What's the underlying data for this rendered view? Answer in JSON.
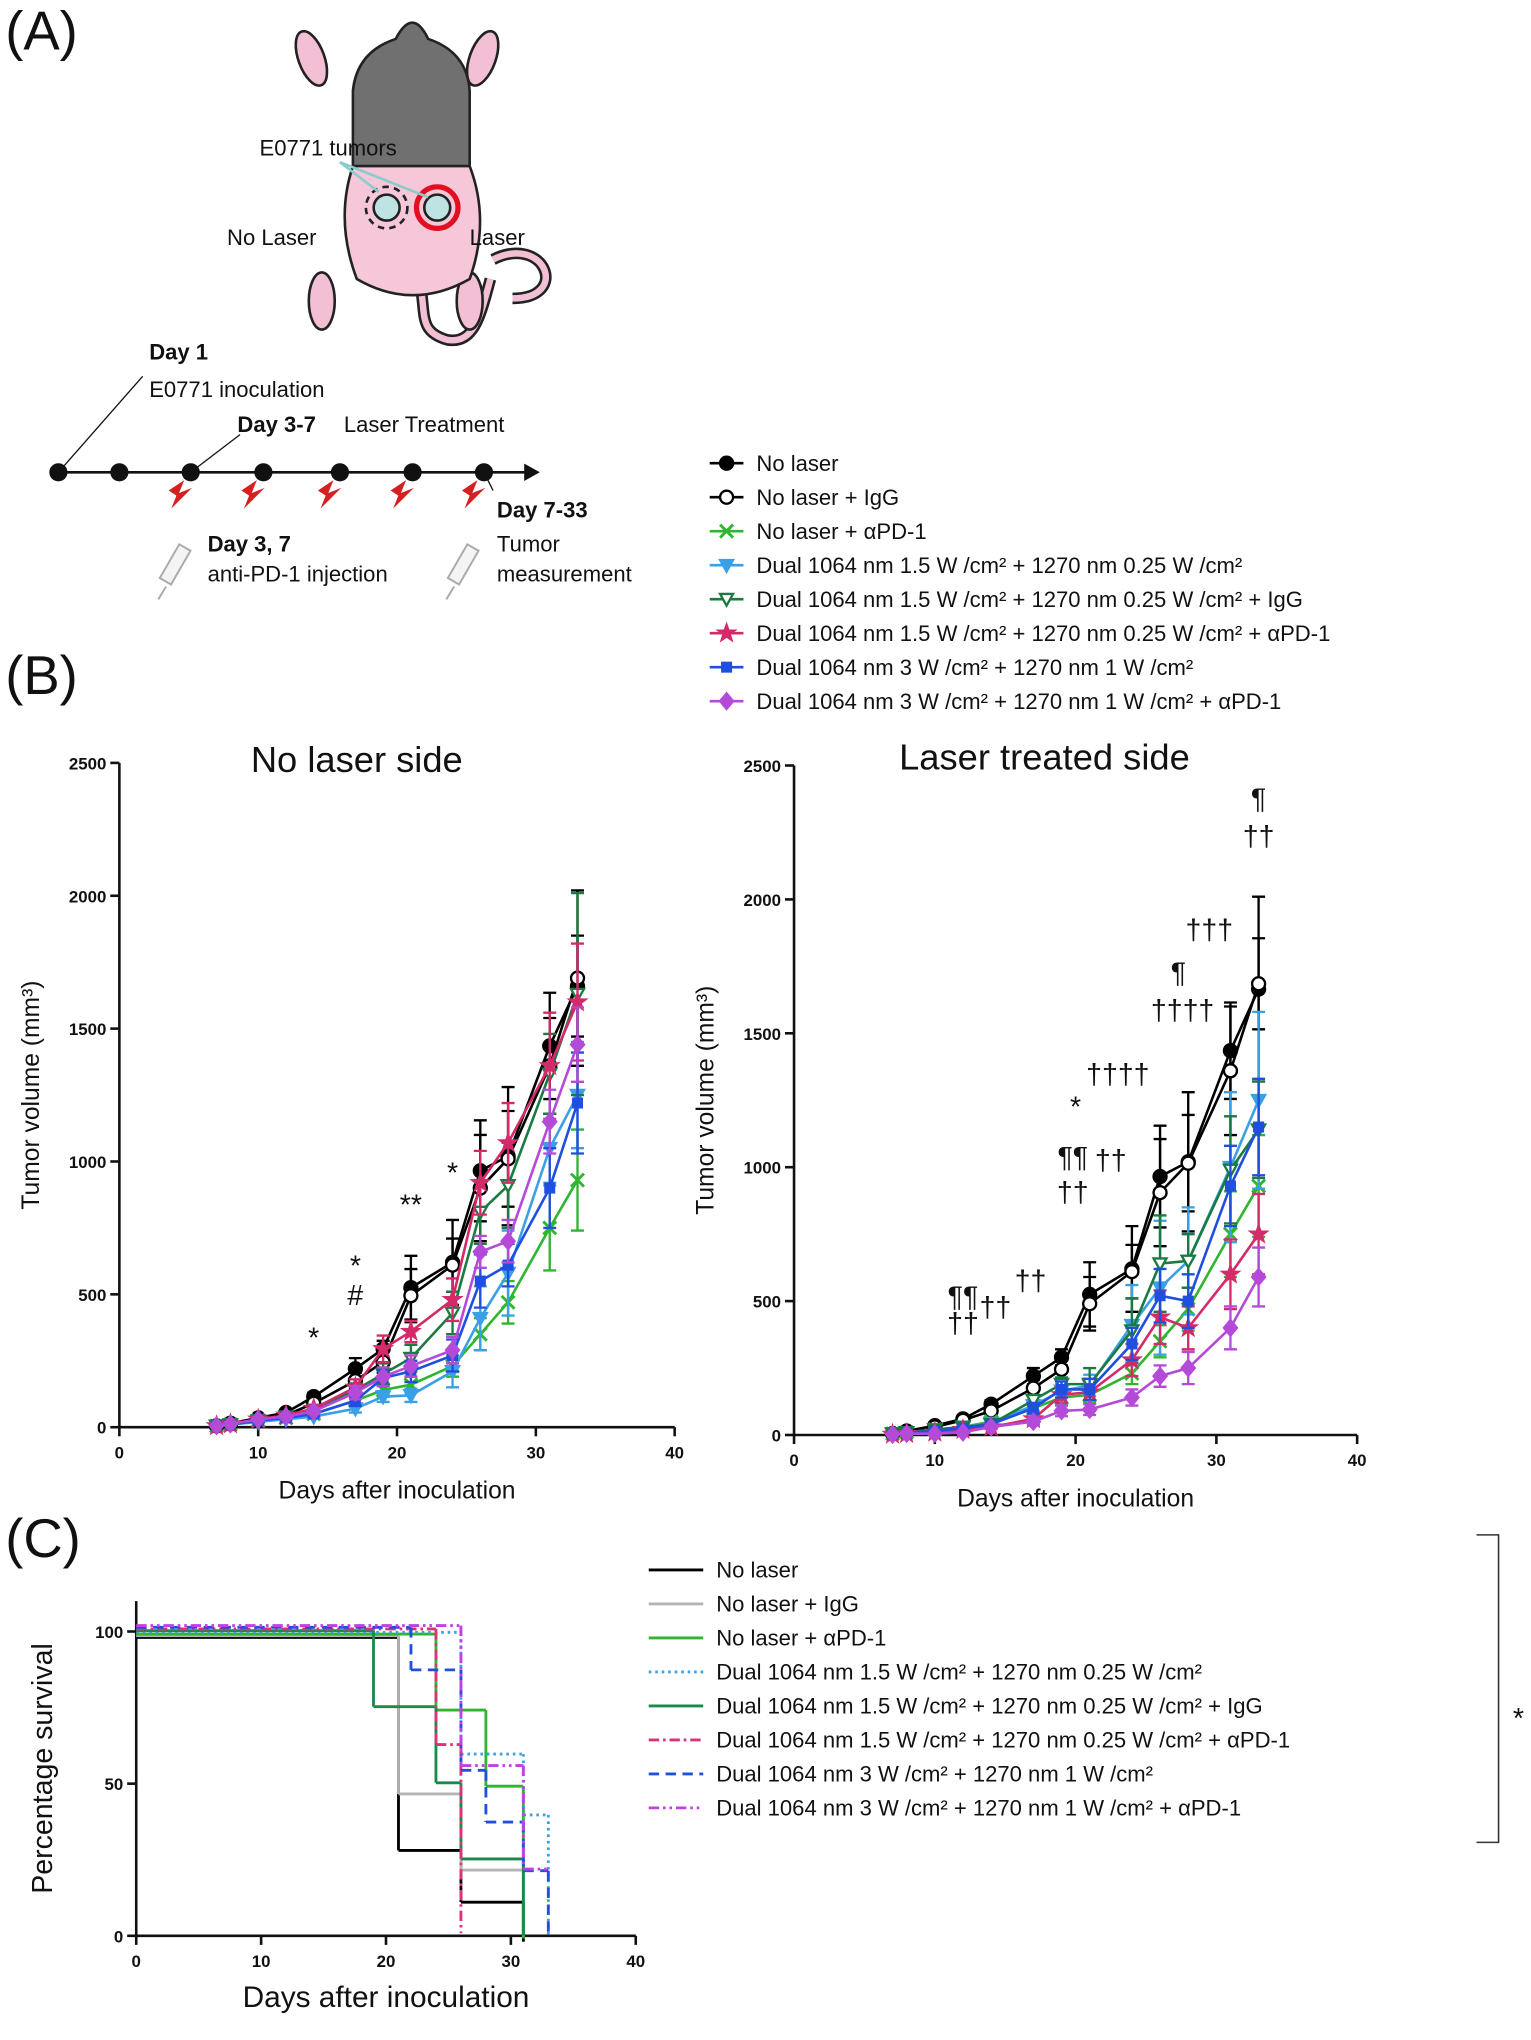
{
  "panel_labels": [
    "(A)",
    "(B)",
    "(C)"
  ],
  "panel_a": {
    "tumor_label": "E0771 tumors",
    "no_laser": "No Laser",
    "laser": "Laser",
    "steps": [
      {
        "day": "Day 1",
        "text": "E0771 inoculation"
      },
      {
        "day": "Day 3-7",
        "text": "Laser Treatment"
      },
      {
        "day": "Day 3, 7",
        "text": "anti-PD-1 injection"
      },
      {
        "day": "Day 7-33",
        "text": "Tumor",
        "text2": "measurement"
      }
    ]
  },
  "chart_data": [
    {
      "type": "line",
      "title": "No laser side",
      "x_label": "Days after inoculation",
      "y_label": "Tumor volume (mm³)",
      "xlim": [
        0,
        40
      ],
      "xticks": [
        0,
        10,
        20,
        30,
        40
      ],
      "ylim": [
        0,
        2500
      ],
      "yticks": [
        0,
        500,
        1000,
        1500,
        2000,
        2500
      ],
      "x": [
        7,
        8,
        10,
        12,
        14,
        17,
        19,
        21,
        24,
        26,
        28,
        31,
        33
      ],
      "series": [
        {
          "name": "No laser",
          "color": "#000000",
          "marker": "circle-filled",
          "values": [
            5,
            15,
            35,
            55,
            115,
            220,
            295,
            525,
            620,
            965,
            1020,
            1435,
            1660
          ],
          "errors": [
            3,
            5,
            8,
            10,
            15,
            40,
            30,
            120,
            160,
            190,
            260,
            200,
            190
          ]
        },
        {
          "name": "No laser + IgG",
          "color": "#000000",
          "marker": "circle-open",
          "values": [
            5,
            12,
            30,
            45,
            90,
            175,
            245,
            495,
            610,
            900,
            1010,
            1360,
            1690
          ],
          "errors": [
            2,
            4,
            6,
            8,
            12,
            30,
            40,
            100,
            100,
            200,
            180,
            180,
            330
          ]
        },
        {
          "name": "No laser + αPD-1",
          "color": "#2fb52f",
          "marker": "x",
          "values": [
            5,
            10,
            25,
            35,
            50,
            100,
            140,
            160,
            230,
            350,
            470,
            750,
            930
          ],
          "errors": [
            2,
            4,
            6,
            8,
            10,
            20,
            25,
            30,
            40,
            60,
            80,
            160,
            190
          ]
        },
        {
          "name": "Dual 1064 nm 1.5 W /cm² + 1270 nm 0.25 W /cm²",
          "color": "#3aa0e6",
          "marker": "triangle-down",
          "values": [
            5,
            10,
            20,
            30,
            40,
            70,
            115,
            120,
            210,
            410,
            580,
            1050,
            1250
          ],
          "errors": [
            2,
            3,
            5,
            6,
            8,
            15,
            20,
            25,
            60,
            120,
            160,
            130,
            200
          ]
        },
        {
          "name": "Dual 1064 nm 1.5 W /cm² + 1270 nm 0.25 W /cm² + IgG",
          "color": "#1a7a40",
          "marker": "triangle-down-open",
          "values": [
            5,
            10,
            25,
            40,
            65,
            140,
            200,
            260,
            430,
            810,
            910,
            1330,
            1630
          ],
          "errors": [
            2,
            4,
            6,
            8,
            10,
            25,
            40,
            50,
            80,
            120,
            160,
            150,
            380
          ]
        },
        {
          "name": "Dual 1064 nm 1.5 W /cm² + 1270 nm 0.25 W /cm² + αPD-1",
          "color": "#d42a6a",
          "marker": "star",
          "values": [
            5,
            12,
            30,
            45,
            70,
            150,
            295,
            360,
            480,
            920,
            1070,
            1360,
            1600
          ],
          "errors": [
            2,
            4,
            6,
            8,
            12,
            30,
            50,
            40,
            80,
            120,
            150,
            200,
            220
          ]
        },
        {
          "name": "Dual 1064 nm 3 W /cm² + 1270 nm 1 W /cm²",
          "color": "#1f4fe0",
          "marker": "square",
          "values": [
            5,
            10,
            25,
            35,
            50,
            100,
            185,
            210,
            270,
            550,
            610,
            900,
            1220
          ],
          "errors": [
            2,
            3,
            5,
            6,
            8,
            20,
            30,
            40,
            60,
            100,
            80,
            150,
            190
          ]
        },
        {
          "name": "Dual 1064 nm 3 W /cm² + 1270 nm 1 W /cm² + αPD-1",
          "color": "#b44ad8",
          "marker": "diamond",
          "values": [
            5,
            12,
            30,
            40,
            60,
            130,
            190,
            230,
            290,
            660,
            700,
            1150,
            1440
          ],
          "errors": [
            2,
            4,
            6,
            8,
            10,
            25,
            35,
            40,
            50,
            60,
            80,
            120,
            140
          ]
        }
      ],
      "annotations": [
        {
          "x": 14,
          "y": 300,
          "text": "*"
        },
        {
          "x": 17,
          "y": 570,
          "text": "*"
        },
        {
          "x": 17,
          "y": 460,
          "text": "#"
        },
        {
          "x": 21,
          "y": 800,
          "text": "**"
        },
        {
          "x": 24,
          "y": 920,
          "text": "*"
        }
      ]
    },
    {
      "type": "line",
      "title": "Laser treated side",
      "x_label": "Days after inoculation",
      "y_label": "Tumor volume (mm³)",
      "xlim": [
        0,
        40
      ],
      "xticks": [
        0,
        10,
        20,
        30,
        40
      ],
      "ylim": [
        0,
        2500
      ],
      "yticks": [
        0,
        500,
        1000,
        1500,
        2000,
        2500
      ],
      "x": [
        7,
        8,
        10,
        12,
        14,
        17,
        19,
        21,
        24,
        26,
        28,
        31,
        33
      ],
      "series": [
        {
          "color": "#000000",
          "marker": "circle-filled",
          "values": [
            5,
            15,
            35,
            60,
            115,
            220,
            290,
            525,
            620,
            965,
            1020,
            1435,
            1665
          ],
          "errors": [
            3,
            5,
            8,
            10,
            15,
            30,
            30,
            120,
            160,
            190,
            260,
            180,
            345
          ]
        },
        {
          "color": "#000000",
          "marker": "circle-open",
          "values": [
            5,
            12,
            30,
            55,
            90,
            175,
            245,
            490,
            610,
            905,
            1015,
            1360,
            1685
          ],
          "errors": [
            2,
            4,
            6,
            8,
            12,
            30,
            40,
            100,
            100,
            200,
            180,
            240,
            170
          ]
        },
        {
          "color": "#2fb52f",
          "marker": "x",
          "values": [
            5,
            10,
            20,
            30,
            50,
            100,
            140,
            150,
            230,
            350,
            470,
            750,
            930
          ],
          "errors": [
            2,
            4,
            6,
            8,
            10,
            20,
            25,
            30,
            40,
            60,
            80,
            160,
            190
          ]
        },
        {
          "color": "#3aa0e6",
          "marker": "triangle-down",
          "values": [
            5,
            10,
            20,
            30,
            45,
            110,
            165,
            185,
            410,
            550,
            650,
            1000,
            1250
          ],
          "errors": [
            2,
            4,
            5,
            6,
            8,
            20,
            25,
            40,
            150,
            250,
            200,
            280,
            330
          ]
        },
        {
          "color": "#1a7a40",
          "marker": "triangle-down-open",
          "values": [
            5,
            10,
            20,
            30,
            40,
            130,
            190,
            190,
            390,
            640,
            650,
            990,
            1140
          ],
          "errors": [
            2,
            4,
            5,
            6,
            8,
            20,
            25,
            60,
            120,
            180,
            100,
            200,
            180
          ]
        },
        {
          "color": "#d42a6a",
          "marker": "star",
          "values": [
            2,
            5,
            10,
            20,
            30,
            60,
            150,
            160,
            280,
            440,
            400,
            600,
            750
          ],
          "errors": [
            1,
            3,
            4,
            6,
            8,
            20,
            30,
            30,
            60,
            100,
            80,
            130,
            150
          ]
        },
        {
          "color": "#1f4fe0",
          "marker": "square",
          "values": [
            2,
            8,
            15,
            25,
            40,
            100,
            170,
            170,
            340,
            520,
            500,
            930,
            1150
          ],
          "errors": [
            1,
            3,
            4,
            6,
            8,
            20,
            30,
            40,
            60,
            100,
            100,
            150,
            180
          ]
        },
        {
          "color": "#b44ad8",
          "marker": "diamond",
          "values": [
            2,
            5,
            5,
            10,
            30,
            50,
            90,
            95,
            140,
            220,
            250,
            400,
            590
          ],
          "errors": [
            1,
            2,
            3,
            4,
            6,
            15,
            20,
            20,
            30,
            40,
            60,
            80,
            110
          ]
        }
      ],
      "annotations": [
        {
          "x": 12,
          "y": 480,
          "text": "¶¶"
        },
        {
          "x": 12,
          "y": 380,
          "text": "††"
        },
        {
          "x": 14.3,
          "y": 440,
          "text": "††"
        },
        {
          "x": 16.8,
          "y": 540,
          "text": "††"
        },
        {
          "x": 20,
          "y": 1190,
          "text": "*"
        },
        {
          "x": 19.8,
          "y": 1000,
          "text": "¶¶"
        },
        {
          "x": 22.5,
          "y": 990,
          "text": "††"
        },
        {
          "x": 19.8,
          "y": 870,
          "text": "††"
        },
        {
          "x": 23,
          "y": 1310,
          "text": "††††"
        },
        {
          "x": 27.6,
          "y": 1550,
          "text": "††††"
        },
        {
          "x": 27.3,
          "y": 1690,
          "text": "¶"
        },
        {
          "x": 29.5,
          "y": 1850,
          "text": "†††"
        },
        {
          "x": 33,
          "y": 2340,
          "text": "¶"
        },
        {
          "x": 33,
          "y": 2200,
          "text": "††"
        }
      ]
    },
    {
      "type": "survival",
      "x_label": "Days after inoculation",
      "y_label": "Percentage survival",
      "xlim": [
        0,
        40
      ],
      "xticks": [
        0,
        10,
        20,
        30,
        40
      ],
      "ylim": [
        0,
        110
      ],
      "yticks": [
        0,
        50,
        100
      ],
      "significance": "*",
      "series": [
        {
          "name": "No laser",
          "color": "#000000",
          "dash": "solid",
          "x": [
            0,
            21,
            26,
            31
          ],
          "values": [
            100,
            30,
            13,
            0
          ]
        },
        {
          "name": "No laser + IgG",
          "color": "#b4b4b4",
          "dash": "solid",
          "x": [
            0,
            21,
            26,
            31
          ],
          "values": [
            100,
            48,
            23,
            23
          ]
        },
        {
          "name": "No laser + αPD-1",
          "color": "#2fb52f",
          "dash": "solid",
          "x": [
            0,
            24,
            28,
            31
          ],
          "values": [
            100,
            75,
            50,
            0
          ]
        },
        {
          "name": "Dual 1064 nm 1.5 W /cm² + 1270 nm 0.25 W /cm²",
          "color": "#3aa0e6",
          "dash": "dotted",
          "x": [
            0,
            26,
            31,
            33
          ],
          "values": [
            100,
            60,
            40,
            0
          ]
        },
        {
          "name": "Dual 1064 nm 1.5 W /cm² + 1270 nm 0.25 W /cm² + IgG",
          "color": "#1a8a4a",
          "dash": "solid",
          "x": [
            0,
            19,
            24,
            26,
            31
          ],
          "values": [
            100,
            75,
            50,
            25,
            0
          ]
        },
        {
          "name": "Dual 1064 nm 1.5 W /cm² + 1270 nm 0.25 W /cm² + αPD-1",
          "color": "#e0307a",
          "dash": "dash-dot",
          "x": [
            0,
            24,
            26
          ],
          "values": [
            100,
            62,
            0
          ]
        },
        {
          "name": "Dual 1064 nm 3 W /cm² + 1270 nm 1 W /cm²",
          "color": "#2050e0",
          "dash": "dashed",
          "x": [
            0,
            22,
            26,
            28,
            31,
            33
          ],
          "values": [
            100,
            86,
            53,
            36,
            20,
            0
          ]
        },
        {
          "name": "Dual 1064 nm 3 W /cm² + 1270 nm 1 W /cm² + αPD-1",
          "color": "#c040e0",
          "dash": "dash-dot-dot",
          "x": [
            0,
            26,
            31,
            33
          ],
          "values": [
            100,
            54,
            20,
            20
          ]
        }
      ]
    }
  ]
}
